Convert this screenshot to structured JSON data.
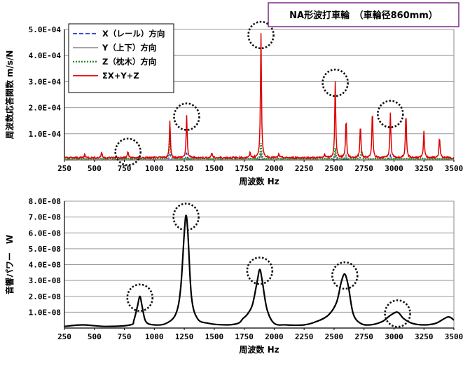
{
  "title": "NA形波打車輪　（車輪径860mm）",
  "chart_data": [
    {
      "type": "line",
      "xlabel": "周波数 Hz",
      "ylabel": "周波数応答関数 m/s/N",
      "xlim": [
        250,
        3500
      ],
      "ylim": [
        0,
        0.0005
      ],
      "x_ticks": [
        "250",
        "500",
        "750",
        "1000",
        "1250",
        "1500",
        "1750",
        "2000",
        "2250",
        "2500",
        "2750",
        "3000",
        "3250",
        "3500"
      ],
      "y_ticks": [
        "1.0E-04",
        "2.0E-04",
        "3.0E-04",
        "4.0E-04",
        "5.0E-04"
      ],
      "grid": true,
      "legend_position": "top-left",
      "series": [
        {
          "name": "X（レール）方向",
          "color": "#2233cc",
          "dash": "dashed",
          "peaks": [
            [
              1130,
              2e-05
            ],
            [
              1270,
              2.5e-05
            ],
            [
              1890,
              2e-05
            ],
            [
              2510,
              1.5e-05
            ],
            [
              2970,
              1.5e-05
            ]
          ]
        },
        {
          "name": "Y（上下）方向",
          "color": "#999999",
          "dash": "solid",
          "peaks": [
            [
              1890,
              3e-05
            ],
            [
              2510,
              2.2e-05
            ],
            [
              2600,
              2e-05
            ]
          ]
        },
        {
          "name": "Z（枕木）方向",
          "color": "#2e8b2e",
          "dash": "dotted",
          "peaks": [
            [
              1130,
              0.00012
            ],
            [
              1890,
              6e-05
            ],
            [
              2510,
              4e-05
            ],
            [
              2730,
              3e-05
            ]
          ]
        },
        {
          "name": "ΣX+Y+Z",
          "color": "#dd0000",
          "dash": "solid",
          "peaks": [
            [
              420,
              1.5e-05
            ],
            [
              560,
              2.2e-05
            ],
            [
              780,
              2.5e-05
            ],
            [
              1130,
              0.00014
            ],
            [
              1270,
              0.00016
            ],
            [
              1480,
              2e-05
            ],
            [
              1800,
              2e-05
            ],
            [
              1890,
              0.00048
            ],
            [
              2040,
              1.5e-05
            ],
            [
              2420,
              1.5e-05
            ],
            [
              2510,
              0.00029
            ],
            [
              2600,
              0.00015
            ],
            [
              2720,
              0.00013
            ],
            [
              2820,
              0.00018
            ],
            [
              2970,
              0.00017
            ],
            [
              3100,
              0.00017
            ],
            [
              3250,
              0.0001
            ],
            [
              3380,
              8e-05
            ]
          ]
        }
      ],
      "highlighted_peaks_hz": [
        780,
        1270,
        1890,
        2510,
        2970
      ]
    },
    {
      "type": "line",
      "xlabel": "周波数 Hz",
      "ylabel": "音響パワー　W",
      "xlim": [
        250,
        3500
      ],
      "ylim": [
        0,
        8e-08
      ],
      "x_ticks": [
        "250",
        "500",
        "750",
        "1000",
        "1250",
        "1500",
        "1750",
        "2000",
        "2250",
        "2500",
        "2750",
        "3000",
        "3250",
        "3500"
      ],
      "y_ticks": [
        "1.0E-08",
        "2.0E-08",
        "3.0E-08",
        "4.0E-08",
        "5.0E-08",
        "6.0E-08",
        "7.0E-08",
        "8.0E-08"
      ],
      "grid": true,
      "series": [
        {
          "name": "",
          "color": "#000000",
          "points": [
            [
              250,
              1e-09
            ],
            [
              400,
              2e-09
            ],
            [
              600,
              1e-09
            ],
            [
              800,
              2e-09
            ],
            [
              830,
              5e-09
            ],
            [
              860,
              1.4e-08
            ],
            [
              880,
              2e-08
            ],
            [
              900,
              1.3e-08
            ],
            [
              930,
              4e-09
            ],
            [
              1000,
              2e-09
            ],
            [
              1100,
              3e-09
            ],
            [
              1180,
              9e-09
            ],
            [
              1220,
              2.5e-08
            ],
            [
              1250,
              6e-08
            ],
            [
              1265,
              7.1e-08
            ],
            [
              1280,
              6e-08
            ],
            [
              1310,
              2e-08
            ],
            [
              1360,
              6e-09
            ],
            [
              1450,
              3e-09
            ],
            [
              1600,
              2e-09
            ],
            [
              1700,
              3e-09
            ],
            [
              1740,
              6e-09
            ],
            [
              1780,
              9e-09
            ],
            [
              1820,
              1.5e-08
            ],
            [
              1860,
              3e-08
            ],
            [
              1880,
              3.7e-08
            ],
            [
              1900,
              3e-08
            ],
            [
              1940,
              1.2e-08
            ],
            [
              2000,
              3e-09
            ],
            [
              2100,
              2e-09
            ],
            [
              2250,
              2e-09
            ],
            [
              2350,
              4e-09
            ],
            [
              2450,
              8e-09
            ],
            [
              2520,
              1.6e-08
            ],
            [
              2560,
              2.9e-08
            ],
            [
              2590,
              3.4e-08
            ],
            [
              2620,
              2.6e-08
            ],
            [
              2660,
              9e-09
            ],
            [
              2720,
              3e-09
            ],
            [
              2800,
              2e-09
            ],
            [
              2900,
              4e-09
            ],
            [
              2970,
              8e-09
            ],
            [
              3030,
              1e-08
            ],
            [
              3080,
              6e-09
            ],
            [
              3150,
              3e-09
            ],
            [
              3250,
              2e-09
            ],
            [
              3350,
              3e-09
            ],
            [
              3450,
              7e-09
            ],
            [
              3500,
              5e-09
            ]
          ]
        }
      ],
      "highlighted_peaks_hz": [
        880,
        1265,
        1880,
        2590,
        3030
      ]
    }
  ]
}
